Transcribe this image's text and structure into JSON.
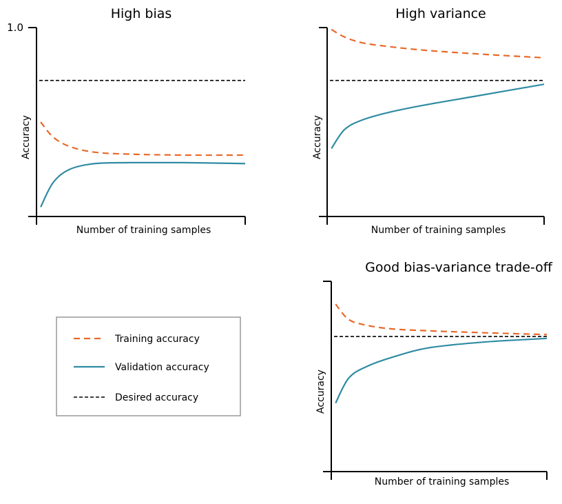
{
  "colors": {
    "training": "#e8692a",
    "validation": "#2f8ba3",
    "desired": "#000000",
    "legend_border": "#999999"
  },
  "legend": {
    "items": [
      {
        "label": "Training accuracy",
        "series": "training",
        "style": "dashed"
      },
      {
        "label": "Validation accuracy",
        "series": "validation",
        "style": "solid"
      },
      {
        "label": "Desired accuracy",
        "series": "desired",
        "style": "dashed-fine"
      }
    ]
  },
  "chart_data": [
    {
      "type": "line",
      "title": "High bias",
      "xlabel": "Number of training samples",
      "ylabel": "Accuracy",
      "yticks": [
        {
          "value": 1.0,
          "label": "1.0"
        }
      ],
      "xlim": [
        0,
        1
      ],
      "ylim": [
        0,
        1.0
      ],
      "desired": 0.72,
      "series": [
        {
          "key": "training",
          "x": [
            0.02,
            0.08,
            0.16,
            0.28,
            0.45,
            0.7,
            1.0
          ],
          "y": [
            0.5,
            0.42,
            0.37,
            0.34,
            0.33,
            0.325,
            0.325
          ]
        },
        {
          "key": "validation",
          "x": [
            0.02,
            0.08,
            0.16,
            0.28,
            0.45,
            0.7,
            1.0
          ],
          "y": [
            0.05,
            0.18,
            0.25,
            0.28,
            0.285,
            0.285,
            0.28
          ]
        }
      ]
    },
    {
      "type": "line",
      "title": "High variance",
      "xlabel": "Number of training samples",
      "ylabel": "Accuracy",
      "yticks": [],
      "xlim": [
        0,
        1
      ],
      "ylim": [
        0,
        1.0
      ],
      "desired": 0.72,
      "series": [
        {
          "key": "training",
          "x": [
            0.02,
            0.08,
            0.16,
            0.28,
            0.45,
            0.7,
            1.0
          ],
          "y": [
            0.99,
            0.95,
            0.92,
            0.9,
            0.88,
            0.86,
            0.84
          ]
        },
        {
          "key": "validation",
          "x": [
            0.02,
            0.08,
            0.16,
            0.28,
            0.45,
            0.7,
            1.0
          ],
          "y": [
            0.36,
            0.46,
            0.51,
            0.55,
            0.59,
            0.64,
            0.7
          ]
        }
      ]
    },
    {
      "type": "line",
      "title": "Good bias-variance trade-off",
      "xlabel": "Number of training samples",
      "ylabel": "Accuracy",
      "yticks": [],
      "xlim": [
        0,
        1
      ],
      "ylim": [
        0,
        1.0
      ],
      "desired": 0.71,
      "series": [
        {
          "key": "training",
          "x": [
            0.02,
            0.08,
            0.16,
            0.28,
            0.45,
            0.7,
            1.0
          ],
          "y": [
            0.88,
            0.8,
            0.77,
            0.75,
            0.74,
            0.73,
            0.72
          ]
        },
        {
          "key": "validation",
          "x": [
            0.02,
            0.08,
            0.16,
            0.28,
            0.45,
            0.7,
            1.0
          ],
          "y": [
            0.36,
            0.49,
            0.55,
            0.6,
            0.65,
            0.68,
            0.7
          ]
        }
      ]
    }
  ]
}
